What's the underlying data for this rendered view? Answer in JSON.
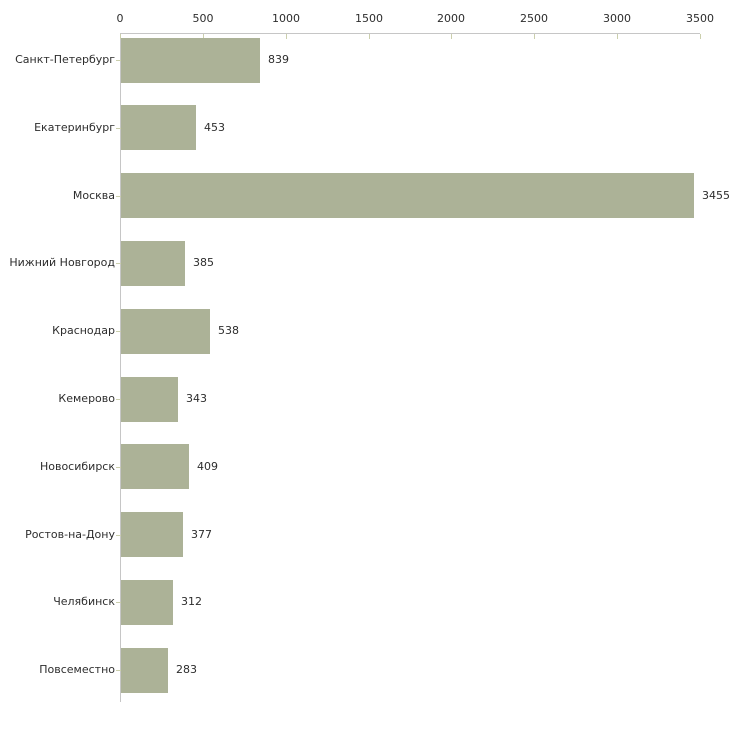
{
  "chart_data": {
    "type": "bar",
    "orientation": "horizontal",
    "title": "",
    "xlabel": "",
    "ylabel": "",
    "categories": [
      "Санкт-Петербург",
      "Екатеринбург",
      "Москва",
      "Нижний Новгород",
      "Краснодар",
      "Кемерово",
      "Новосибирск",
      "Ростов-на-Дону",
      "Челябинск",
      "Повсеместно"
    ],
    "values": [
      839,
      453,
      3455,
      385,
      538,
      343,
      409,
      377,
      312,
      283
    ],
    "value_labels": [
      "839",
      "453",
      "3455",
      "385",
      "538",
      "343",
      "409",
      "377",
      "312",
      "283"
    ],
    "xlim": [
      0,
      3500
    ],
    "x_ticks": [
      0,
      500,
      1000,
      1500,
      2000,
      2500,
      3000,
      3500
    ],
    "x_tick_labels": [
      "0",
      "500",
      "1000",
      "1500",
      "2000",
      "2500",
      "3000",
      "3500"
    ],
    "legend": null,
    "grid": false,
    "axis_position": "top-left",
    "colors": {
      "bar_fill": "#acb297",
      "axis_line": "#c6c6c6",
      "tick_mark": "#cbcfad",
      "text": "#2d2d2d",
      "background": "#ffffff"
    }
  }
}
